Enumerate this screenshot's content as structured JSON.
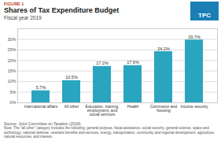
{
  "chart_data": {
    "type": "bar",
    "title": "Shares of Tax Expenditure Budget",
    "subtitle": "Fiscal year 2019",
    "annotations": [
      "FIGURE 1",
      "Source: Joint Committee on Taxation (2018).",
      "Note: The \"all other\" category includes the following: general purpose, fiscal assistance, social security, general science, space and technology, national defense, veterans benefits and services, energy, transportation, community and regional development, agriculture, natural resources, and interest.",
      "TPC"
    ],
    "categories": [
      "International affairs",
      "All other",
      "Education, training,\nemployment, and\nsocial services",
      "Health",
      "Commerce and\nhousing",
      "Income security"
    ],
    "values": [
      5.7,
      10.5,
      17.2,
      17.6,
      24.2,
      29.7
    ],
    "value_labels": [
      "5.7%",
      "10.5%",
      "17.2%",
      "17.6%",
      "24.2%",
      "29.7%"
    ],
    "color": "#2aa5c0",
    "ylim": [
      0,
      35
    ],
    "yticks": [
      {
        "value": 0,
        "label": "0%"
      },
      {
        "value": 5,
        "label": "5%"
      },
      {
        "value": 10,
        "label": "10%"
      },
      {
        "value": 15,
        "label": "15%"
      },
      {
        "value": 20,
        "label": "20%"
      },
      {
        "value": 25,
        "label": "25%"
      },
      {
        "value": 30,
        "label": "30%"
      }
    ],
    "grid": true,
    "data_labels": true
  }
}
